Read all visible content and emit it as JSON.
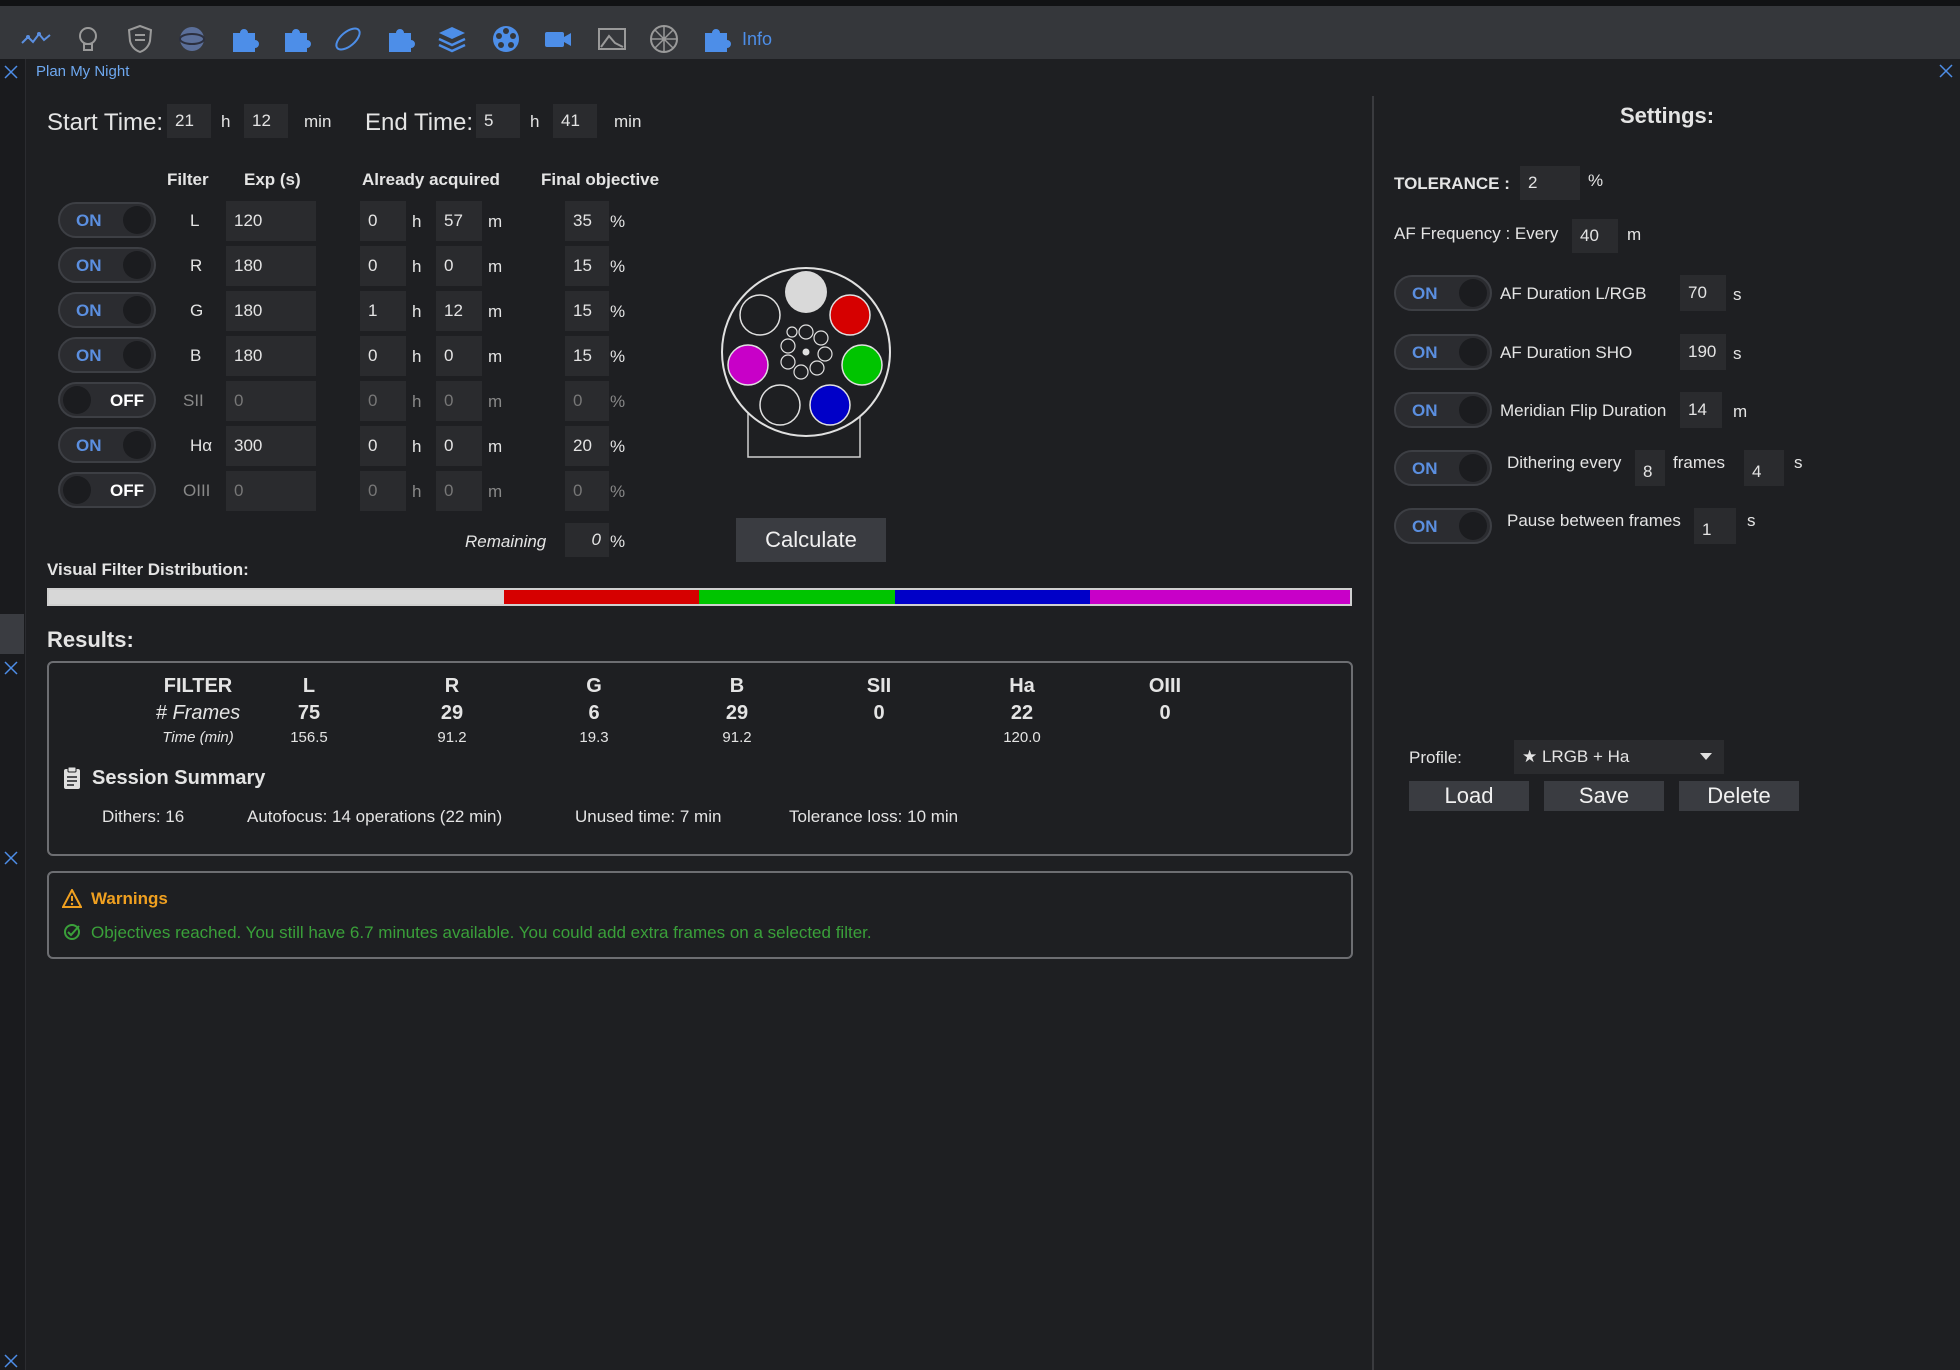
{
  "toolbar": {
    "icons": [
      "chart-line-icon",
      "lightbulb-icon",
      "shield-icon",
      "sphere-icon",
      "puzzle-icon",
      "puzzle-icon",
      "orbit-icon",
      "puzzle-icon",
      "layers-icon",
      "filter-wheel-icon",
      "camera-icon",
      "telescope-view-icon",
      "dome-icon",
      "puzzle-icon"
    ],
    "info_label": "Info"
  },
  "panel": {
    "title": "Plan My Night"
  },
  "times": {
    "start_label": "Start Time:",
    "start_h": "21",
    "start_min": "12",
    "end_label": "End Time:",
    "end_h": "5",
    "end_min": "41",
    "h_unit": "h",
    "min_unit": "min"
  },
  "table": {
    "headers": {
      "filter": "Filter",
      "exp": "Exp (s)",
      "acquired": "Already acquired",
      "objective": "Final objective"
    },
    "units": {
      "h": "h",
      "m": "m",
      "pct": "%"
    },
    "rows": [
      {
        "toggle": "ON",
        "filter": "L",
        "exp": "120",
        "acq_h": "0",
        "acq_m": "57",
        "obj": "35"
      },
      {
        "toggle": "ON",
        "filter": "R",
        "exp": "180",
        "acq_h": "0",
        "acq_m": "0",
        "obj": "15"
      },
      {
        "toggle": "ON",
        "filter": "G",
        "exp": "180",
        "acq_h": "1",
        "acq_m": "12",
        "obj": "15"
      },
      {
        "toggle": "ON",
        "filter": "B",
        "exp": "180",
        "acq_h": "0",
        "acq_m": "0",
        "obj": "15"
      },
      {
        "toggle": "OFF",
        "filter": "SII",
        "exp": "0",
        "acq_h": "0",
        "acq_m": "0",
        "obj": "0"
      },
      {
        "toggle": "ON",
        "filter": "Hα",
        "exp": "300",
        "acq_h": "0",
        "acq_m": "0",
        "obj": "20"
      },
      {
        "toggle": "OFF",
        "filter": "OIII",
        "exp": "0",
        "acq_h": "0",
        "acq_m": "0",
        "obj": "0"
      }
    ],
    "remaining_label": "Remaining",
    "remaining_value": "0"
  },
  "calculate_label": "Calculate",
  "distribution": {
    "label": "Visual Filter Distribution:",
    "segments": [
      {
        "name": "L",
        "fraction": 0.35,
        "color": "#d7d7d7"
      },
      {
        "name": "R",
        "fraction": 0.15,
        "color": "#d60000"
      },
      {
        "name": "G",
        "fraction": 0.15,
        "color": "#00c400"
      },
      {
        "name": "B",
        "fraction": 0.15,
        "color": "#0000c8"
      },
      {
        "name": "Ha",
        "fraction": 0.2,
        "color": "#c800c8"
      }
    ]
  },
  "results": {
    "title": "Results:",
    "label_col": {
      "filter": "FILTER",
      "frames": "# Frames",
      "time": "Time (min)"
    },
    "columns": [
      {
        "filter": "L",
        "frames": "75",
        "time": "156.5"
      },
      {
        "filter": "R",
        "frames": "29",
        "time": "91.2"
      },
      {
        "filter": "G",
        "frames": "6",
        "time": "19.3"
      },
      {
        "filter": "B",
        "frames": "29",
        "time": "91.2"
      },
      {
        "filter": "SII",
        "frames": "0",
        "time": ""
      },
      {
        "filter": "Ha",
        "frames": "22",
        "time": "120.0"
      },
      {
        "filter": "OIII",
        "frames": "0",
        "time": ""
      }
    ],
    "summary_title": "Session Summary",
    "dithers": "Dithers: 16",
    "autofocus": "Autofocus: 14 operations (22 min)",
    "unused": "Unused time: 7 min",
    "tolerance_loss": "Tolerance loss: 10 min"
  },
  "warnings": {
    "title": "Warnings",
    "message": "Objectives reached. You still have 6.7 minutes available. You could add extra frames on a selected filter."
  },
  "settings": {
    "title": "Settings:",
    "tolerance_label": "TOLERANCE :",
    "tolerance_value": "2",
    "tolerance_unit": "%",
    "af_freq_label": "AF Frequency : Every",
    "af_freq_value": "40",
    "af_freq_unit": "m",
    "af_lrgb_toggle": "ON",
    "af_lrgb_label": "AF Duration L/RGB",
    "af_lrgb_value": "70",
    "af_lrgb_unit": "s",
    "af_sho_toggle": "ON",
    "af_sho_label": "AF Duration SHO",
    "af_sho_value": "190",
    "af_sho_unit": "s",
    "meridian_toggle": "ON",
    "meridian_label": "Meridian Flip Duration",
    "meridian_value": "14",
    "meridian_unit": "m",
    "dither_toggle": "ON",
    "dither_label": "Dithering every",
    "dither_frames": "8",
    "dither_frames_label": "frames",
    "dither_seconds": "4",
    "dither_unit": "s",
    "pause_toggle": "ON",
    "pause_label": "Pause between frames",
    "pause_value": "1",
    "pause_unit": "s"
  },
  "profile": {
    "label": "Profile:",
    "selected": "★ LRGB + Ha",
    "load": "Load",
    "save": "Save",
    "delete": "Delete"
  },
  "colors": {
    "accent": "#4d8ee8",
    "warning": "#f0a020",
    "success": "#3aa03a"
  }
}
